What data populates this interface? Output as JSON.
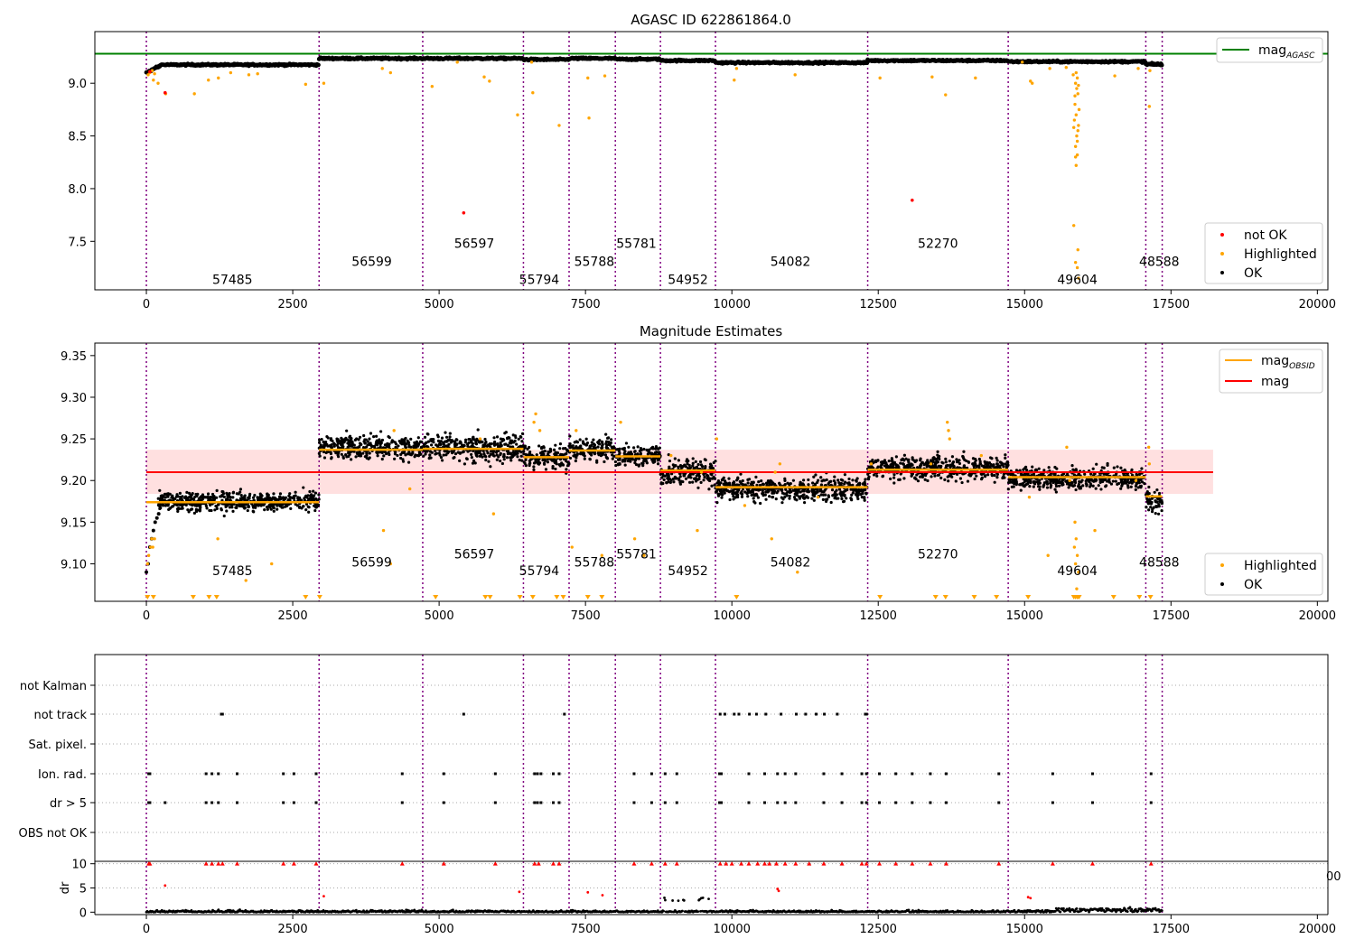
{
  "figure": {
    "title": "AGASC ID 622861864.0"
  },
  "obsid_boundaries": [
    0,
    2950,
    4720,
    6440,
    7220,
    8010,
    8780,
    9720,
    12320,
    14720,
    17070,
    17350
  ],
  "obsid_labels": [
    {
      "label": "57485",
      "x": 1470,
      "y": 7.14
    },
    {
      "label": "56599",
      "x": 3850,
      "y": 7.31
    },
    {
      "label": "56597",
      "x": 5600,
      "y": 7.48
    },
    {
      "label": "55794",
      "x": 6710,
      "y": 7.14
    },
    {
      "label": "55788",
      "x": 7650,
      "y": 7.31
    },
    {
      "label": "55781",
      "x": 8370,
      "y": 7.48
    },
    {
      "label": "54952",
      "x": 9250,
      "y": 7.14
    },
    {
      "label": "54082",
      "x": 11000,
      "y": 7.31
    },
    {
      "label": "52270",
      "x": 13520,
      "y": 7.48
    },
    {
      "label": "49604",
      "x": 15900,
      "y": 7.14
    },
    {
      "label": "48588",
      "x": 17300,
      "y": 7.31
    }
  ],
  "chart_data": [
    {
      "type": "scatter",
      "title": "AGASC ID 622861864.0",
      "xlim": [
        -880,
        20180
      ],
      "ylim": [
        7.04,
        9.49
      ],
      "xticks": [
        0,
        2500,
        5000,
        7500,
        10000,
        12500,
        15000,
        17500,
        20000
      ],
      "yticks": [
        7.5,
        8.0,
        8.5,
        9.0
      ],
      "ytick_labels": [
        "7.5",
        "8.0",
        "8.5",
        "9.0"
      ],
      "legend_lines": [
        {
          "name": "mag_AGASC_label",
          "label": "mag",
          "sub": "AGASC",
          "color": "#008000"
        }
      ],
      "legend_points": [
        {
          "label": "not OK",
          "color": "#ff0000"
        },
        {
          "label": "Highlighted",
          "color": "#ffa500"
        },
        {
          "label": "OK",
          "color": "#000000"
        }
      ],
      "mag_agasc": 9.28,
      "ok_segments": [
        {
          "x0": 0,
          "x1": 2950,
          "y": 9.175
        },
        {
          "x0": 2950,
          "x1": 4720,
          "y": 9.235
        },
        {
          "x0": 4720,
          "x1": 6440,
          "y": 9.235
        },
        {
          "x0": 6440,
          "x1": 7220,
          "y": 9.225
        },
        {
          "x0": 7220,
          "x1": 8010,
          "y": 9.235
        },
        {
          "x0": 8010,
          "x1": 8780,
          "y": 9.228
        },
        {
          "x0": 8780,
          "x1": 9720,
          "y": 9.215
        },
        {
          "x0": 9720,
          "x1": 12320,
          "y": 9.195
        },
        {
          "x0": 12320,
          "x1": 14720,
          "y": 9.215
        },
        {
          "x0": 14720,
          "x1": 17070,
          "y": 9.205
        },
        {
          "x0": 17070,
          "x1": 17350,
          "y": 9.18
        }
      ],
      "highlighted": [
        [
          30,
          9.08
        ],
        [
          60,
          9.1
        ],
        [
          100,
          9.12
        ],
        [
          140,
          9.09
        ],
        [
          120,
          9.03
        ],
        [
          200,
          9.0
        ],
        [
          330,
          8.9
        ],
        [
          820,
          8.9
        ],
        [
          1060,
          9.03
        ],
        [
          1230,
          9.05
        ],
        [
          1440,
          9.1
        ],
        [
          1750,
          9.08
        ],
        [
          1900,
          9.09
        ],
        [
          2720,
          8.99
        ],
        [
          3030,
          9.0
        ],
        [
          4030,
          9.14
        ],
        [
          4170,
          9.1
        ],
        [
          4880,
          8.97
        ],
        [
          5310,
          9.2
        ],
        [
          5770,
          9.06
        ],
        [
          5860,
          9.02
        ],
        [
          6340,
          8.7
        ],
        [
          6580,
          9.2
        ],
        [
          6600,
          8.91
        ],
        [
          7050,
          8.6
        ],
        [
          7560,
          8.67
        ],
        [
          7540,
          9.05
        ],
        [
          7830,
          9.07
        ],
        [
          10040,
          9.03
        ],
        [
          10080,
          9.14
        ],
        [
          11080,
          9.08
        ],
        [
          12530,
          9.05
        ],
        [
          13420,
          9.06
        ],
        [
          13650,
          8.89
        ],
        [
          14160,
          9.05
        ],
        [
          14960,
          9.2
        ],
        [
          15100,
          9.02
        ],
        [
          15130,
          9.0
        ],
        [
          15430,
          9.14
        ],
        [
          15710,
          9.15
        ],
        [
          15830,
          9.08
        ],
        [
          15870,
          9.0
        ],
        [
          15890,
          8.95
        ],
        [
          15910,
          8.9
        ],
        [
          15860,
          8.8
        ],
        [
          15880,
          8.7
        ],
        [
          15920,
          8.6
        ],
        [
          15840,
          8.58
        ],
        [
          15890,
          8.5
        ],
        [
          15900,
          8.45
        ],
        [
          15870,
          8.3
        ],
        [
          15880,
          8.22
        ],
        [
          15900,
          8.32
        ],
        [
          15840,
          7.65
        ],
        [
          15910,
          7.42
        ],
        [
          15870,
          7.3
        ],
        [
          15920,
          7.15
        ],
        [
          16540,
          9.07
        ],
        [
          16940,
          9.14
        ],
        [
          17130,
          8.78
        ],
        [
          17140,
          9.12
        ],
        [
          15880,
          9.1
        ],
        [
          15900,
          9.05
        ],
        [
          15920,
          8.98
        ],
        [
          15860,
          8.88
        ],
        [
          15930,
          8.75
        ],
        [
          15850,
          8.65
        ],
        [
          15910,
          8.55
        ],
        [
          15870,
          8.4
        ],
        [
          15900,
          7.25
        ]
      ],
      "not_ok": [
        [
          320,
          8.91
        ],
        [
          5420,
          7.77
        ],
        [
          13080,
          7.89
        ],
        [
          60,
          9.11
        ]
      ]
    },
    {
      "type": "scatter",
      "title": "Magnitude Estimates",
      "xlim": [
        -880,
        20180
      ],
      "ylim": [
        9.055,
        9.365
      ],
      "xticks": [
        0,
        2500,
        5000,
        7500,
        10000,
        12500,
        15000,
        17500,
        20000
      ],
      "yticks": [
        9.1,
        9.15,
        9.2,
        9.25,
        9.3,
        9.35
      ],
      "ytick_labels": [
        "9.10",
        "9.15",
        "9.20",
        "9.25",
        "9.30",
        "9.35"
      ],
      "legend_lines": [
        {
          "name": "mag_OBSID_label",
          "label": "mag",
          "sub": "OBSID",
          "color": "#ffa500"
        },
        {
          "name": "mag_label",
          "label": "mag",
          "sub": "",
          "color": "#ff0000"
        }
      ],
      "legend_points": [
        {
          "label": "Highlighted",
          "color": "#ffa500"
        },
        {
          "label": "OK",
          "color": "#000000"
        }
      ],
      "mag": 9.21,
      "mag_band": [
        9.184,
        9.237
      ],
      "mag_line_x": [
        0,
        18220
      ],
      "mag_obsid": [
        {
          "x0": 0,
          "x1": 2950,
          "y": 9.174
        },
        {
          "x0": 2950,
          "x1": 4720,
          "y": 9.237
        },
        {
          "x0": 4720,
          "x1": 6440,
          "y": 9.238
        },
        {
          "x0": 6440,
          "x1": 7220,
          "y": 9.228
        },
        {
          "x0": 7220,
          "x1": 8010,
          "y": 9.236
        },
        {
          "x0": 8010,
          "x1": 8780,
          "y": 9.229
        },
        {
          "x0": 8780,
          "x1": 9720,
          "y": 9.212
        },
        {
          "x0": 9720,
          "x1": 12320,
          "y": 9.192
        },
        {
          "x0": 12320,
          "x1": 14720,
          "y": 9.213
        },
        {
          "x0": 14720,
          "x1": 17070,
          "y": 9.204
        },
        {
          "x0": 17070,
          "x1": 17350,
          "y": 9.181
        }
      ],
      "ok_bands": [
        {
          "x0": 200,
          "x1": 2950,
          "lo": 9.155,
          "hi": 9.195
        },
        {
          "x0": 2950,
          "x1": 4720,
          "lo": 9.215,
          "hi": 9.265
        },
        {
          "x0": 4720,
          "x1": 6440,
          "lo": 9.21,
          "hi": 9.27
        },
        {
          "x0": 6440,
          "x1": 7220,
          "lo": 9.205,
          "hi": 9.25
        },
        {
          "x0": 7220,
          "x1": 8010,
          "lo": 9.215,
          "hi": 9.26
        },
        {
          "x0": 8010,
          "x1": 8780,
          "lo": 9.21,
          "hi": 9.25
        },
        {
          "x0": 8780,
          "x1": 9720,
          "lo": 9.18,
          "hi": 9.24
        },
        {
          "x0": 9720,
          "x1": 12320,
          "lo": 9.165,
          "hi": 9.215
        },
        {
          "x0": 12320,
          "x1": 14720,
          "lo": 9.19,
          "hi": 9.24
        },
        {
          "x0": 14720,
          "x1": 17070,
          "lo": 9.18,
          "hi": 9.225
        },
        {
          "x0": 17070,
          "x1": 17350,
          "lo": 9.15,
          "hi": 9.2
        }
      ],
      "ok_rise": [
        [
          0,
          9.09
        ],
        [
          30,
          9.1
        ],
        [
          60,
          9.12
        ],
        [
          90,
          9.13
        ],
        [
          120,
          9.14
        ],
        [
          150,
          9.15
        ],
        [
          180,
          9.155
        ],
        [
          210,
          9.16
        ]
      ],
      "highlighted": [
        [
          20,
          9.1
        ],
        [
          40,
          9.11
        ],
        [
          70,
          9.12
        ],
        [
          90,
          9.13
        ],
        [
          110,
          9.12
        ],
        [
          140,
          9.13
        ],
        [
          1220,
          9.13
        ],
        [
          1700,
          9.08
        ],
        [
          2140,
          9.1
        ],
        [
          4050,
          9.14
        ],
        [
          4170,
          9.1
        ],
        [
          4230,
          9.26
        ],
        [
          4500,
          9.19
        ],
        [
          5700,
          9.25
        ],
        [
          5930,
          9.16
        ],
        [
          6620,
          9.27
        ],
        [
          6650,
          9.28
        ],
        [
          6720,
          9.26
        ],
        [
          7270,
          9.12
        ],
        [
          7340,
          9.26
        ],
        [
          7780,
          9.11
        ],
        [
          8100,
          9.27
        ],
        [
          8340,
          9.13
        ],
        [
          8500,
          9.11
        ],
        [
          8960,
          9.23
        ],
        [
          9410,
          9.14
        ],
        [
          9480,
          9.21
        ],
        [
          9740,
          9.25
        ],
        [
          10220,
          9.17
        ],
        [
          10680,
          9.13
        ],
        [
          10740,
          9.21
        ],
        [
          10820,
          9.22
        ],
        [
          11120,
          9.09
        ],
        [
          11470,
          9.18
        ],
        [
          12380,
          9.22
        ],
        [
          13400,
          9.22
        ],
        [
          13680,
          9.27
        ],
        [
          13700,
          9.26
        ],
        [
          13720,
          9.25
        ],
        [
          14260,
          9.23
        ],
        [
          15080,
          9.18
        ],
        [
          15400,
          9.11
        ],
        [
          15720,
          9.24
        ],
        [
          15770,
          9.2
        ],
        [
          15860,
          9.15
        ],
        [
          15880,
          9.13
        ],
        [
          15900,
          9.11
        ],
        [
          15920,
          9.09
        ],
        [
          15870,
          9.1
        ],
        [
          15890,
          9.07
        ],
        [
          15910,
          9.06
        ],
        [
          15850,
          9.12
        ],
        [
          16200,
          9.14
        ],
        [
          16900,
          9.2
        ],
        [
          17120,
          9.24
        ],
        [
          17130,
          9.22
        ]
      ],
      "below_markers": [
        20,
        120,
        800,
        1070,
        1200,
        2720,
        2960,
        4940,
        5790,
        5870,
        6380,
        6600,
        7010,
        7120,
        7540,
        7780,
        10080,
        12530,
        13480,
        13650,
        14140,
        14520,
        15060,
        15840,
        15870,
        15900,
        15930,
        16520,
        16960,
        17150
      ]
    },
    {
      "type": "scatter",
      "xlim": [
        -880,
        20180
      ],
      "category_labels": [
        "not Kalman",
        "not track",
        "Sat. pixel.",
        "Ion. rad.",
        "dr > 5",
        "OBS not OK"
      ],
      "category_points": {
        "not track": [
          1280,
          1300,
          5420,
          7140,
          9800,
          9880,
          10040,
          10120,
          10300,
          10420,
          10580,
          10840,
          11100,
          11260,
          11440,
          11580,
          11800,
          12280,
          12300
        ],
        "Ion. rad.": [
          40,
          60,
          1020,
          1120,
          1230,
          1550,
          2340,
          2520,
          2900,
          4370,
          5080,
          5960,
          6630,
          6680,
          6740,
          6950,
          7050,
          8330,
          8630,
          8860,
          9060,
          9790,
          9820,
          10290,
          10560,
          10780,
          10910,
          11090,
          11570,
          11880,
          12220,
          12300,
          12520,
          12800,
          13080,
          13390,
          13660,
          14560,
          15480,
          16160,
          17160
        ],
        "dr > 5": [
          40,
          60,
          320,
          1020,
          1120,
          1230,
          1550,
          2340,
          2520,
          2900,
          4370,
          5080,
          5960,
          6630,
          6680,
          6740,
          6950,
          7050,
          8330,
          8630,
          8860,
          9060,
          9790,
          9820,
          10290,
          10560,
          10780,
          10910,
          11090,
          11570,
          11880,
          12220,
          12300,
          12520,
          12800,
          13080,
          13390,
          13660,
          14560,
          15480,
          16160,
          17160
        ]
      },
      "dr_ylim": [
        -0.5,
        10.5
      ],
      "dr_yticks": [
        0,
        5,
        10
      ],
      "dr_ylabel": "dr",
      "dr_xticks": [
        0,
        2500,
        5000,
        7500,
        10000,
        12500,
        15000,
        17500,
        20000
      ],
      "dr_red_points": [
        [
          40,
          10
        ],
        [
          60,
          10
        ],
        [
          320,
          5.5
        ],
        [
          1020,
          10
        ],
        [
          1120,
          10
        ],
        [
          1230,
          10
        ],
        [
          1300,
          10
        ],
        [
          1550,
          10
        ],
        [
          2340,
          10
        ],
        [
          2520,
          10
        ],
        [
          2900,
          10
        ],
        [
          3030,
          3.3
        ],
        [
          4370,
          10
        ],
        [
          5080,
          10
        ],
        [
          5960,
          10
        ],
        [
          6370,
          4.2
        ],
        [
          6630,
          10
        ],
        [
          6700,
          10
        ],
        [
          6950,
          10
        ],
        [
          7050,
          10
        ],
        [
          7540,
          4.1
        ],
        [
          7790,
          3.5
        ],
        [
          8330,
          10
        ],
        [
          8630,
          10
        ],
        [
          8860,
          10
        ],
        [
          9060,
          10
        ],
        [
          9800,
          10
        ],
        [
          9900,
          10
        ],
        [
          10000,
          10
        ],
        [
          10160,
          10
        ],
        [
          10290,
          10
        ],
        [
          10440,
          10
        ],
        [
          10560,
          10
        ],
        [
          10640,
          10
        ],
        [
          10760,
          10
        ],
        [
          10780,
          4.8
        ],
        [
          10800,
          4.4
        ],
        [
          10910,
          10
        ],
        [
          11090,
          10
        ],
        [
          11320,
          10
        ],
        [
          11570,
          10
        ],
        [
          11880,
          10
        ],
        [
          12220,
          10
        ],
        [
          12300,
          10
        ],
        [
          12520,
          10
        ],
        [
          12800,
          10
        ],
        [
          13080,
          10
        ],
        [
          13390,
          10
        ],
        [
          13660,
          10
        ],
        [
          14560,
          10
        ],
        [
          15060,
          3.1
        ],
        [
          15100,
          2.9
        ],
        [
          15480,
          10
        ],
        [
          16160,
          10
        ],
        [
          17160,
          10
        ]
      ],
      "dr_cut_label": "00"
    }
  ]
}
